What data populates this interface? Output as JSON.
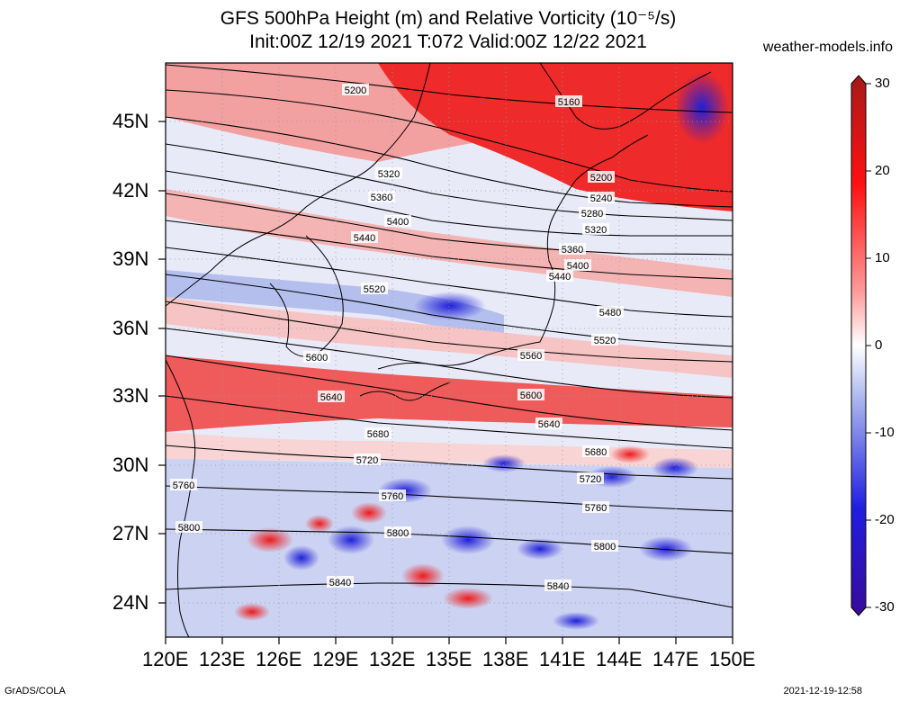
{
  "title": {
    "line1": "GFS 500hPa Height (m) and Relative Vorticity (10⁻⁵/s)",
    "line2": "Init:00Z 12/19 2021 T:072 Valid:00Z 12/22 2021"
  },
  "site": "weather-models.info",
  "footer_left": "GrADS/COLA",
  "footer_right": "2021-12-19-12:58",
  "lat_labels": [
    "45N",
    "42N",
    "39N",
    "36N",
    "33N",
    "30N",
    "27N",
    "24N"
  ],
  "lon_labels": [
    "120E",
    "123E",
    "126E",
    "129E",
    "132E",
    "135E",
    "138E",
    "141E",
    "144E",
    "147E",
    "150E"
  ],
  "colorbar_labels": [
    "30",
    "20",
    "10",
    "0",
    "-10",
    "-20",
    "-30"
  ],
  "contour_labels": [
    "5160",
    "5200",
    "5200",
    "5240",
    "5280",
    "5320",
    "5320",
    "5360",
    "5360",
    "5400",
    "5400",
    "5440",
    "5440",
    "5480",
    "5520",
    "5520",
    "5560",
    "5600",
    "5600",
    "5640",
    "5640",
    "5680",
    "5680",
    "5720",
    "5720",
    "5760",
    "5760",
    "5760",
    "5800",
    "5800",
    "5800",
    "5840",
    "5840"
  ],
  "colors": {
    "positive": "#e8202a",
    "negative": "#2a2ad8",
    "neutral": "#ffffff",
    "contour": "#000000"
  }
}
